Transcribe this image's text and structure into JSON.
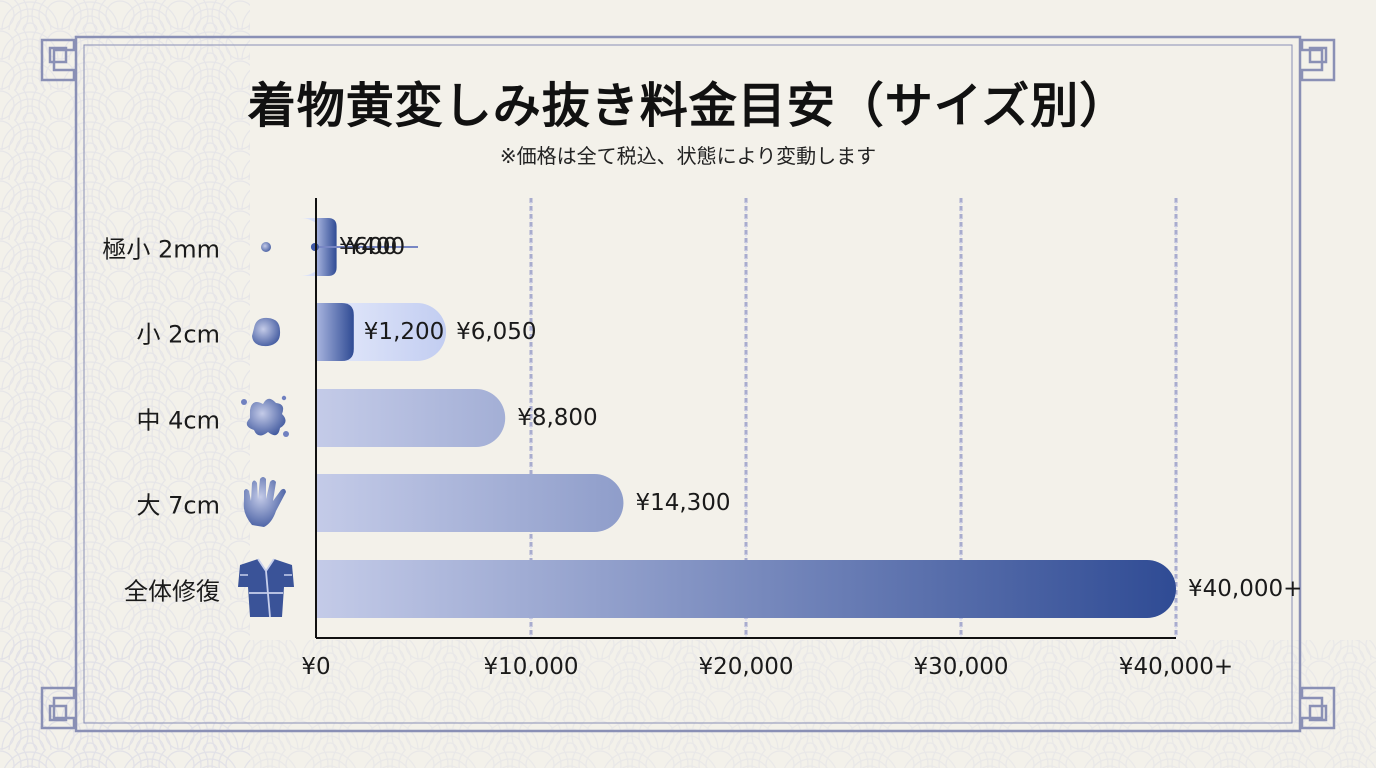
{
  "title": "着物黄変しみ抜き料金目安（サイズ別）",
  "subtitle": "※価格は全て税込、状態により変動します",
  "colors": {
    "bar_light": "#c4cbe8",
    "bar_dark": "#2f4b94",
    "border": "#8a90b5",
    "axis": "#111111",
    "grid": "#a8acce"
  },
  "chart_data": {
    "type": "bar",
    "orientation": "horizontal",
    "categories": [
      {
        "label": "極小 2mm",
        "icon": "tiny-dot-icon",
        "min": 400,
        "max": 600,
        "min_label": "¥400",
        "max_label": "¥600"
      },
      {
        "label": "小 2cm",
        "icon": "small-stain-icon",
        "min": 1200,
        "max": 6050,
        "min_label": "¥1,200",
        "max_label": "¥6,050"
      },
      {
        "label": "中 4cm",
        "icon": "splash-stain-icon",
        "value": 8800,
        "value_label": "¥8,800"
      },
      {
        "label": "大 7cm",
        "icon": "hand-icon",
        "value": 14300,
        "value_label": "¥14,300"
      },
      {
        "label": "全体修復",
        "icon": "kimono-icon",
        "value": 40000,
        "value_label": "¥40,000+"
      }
    ],
    "xlim": [
      0,
      40000
    ],
    "xticks": [
      {
        "value": 0,
        "label": "¥0"
      },
      {
        "value": 10000,
        "label": "¥10,000"
      },
      {
        "value": 20000,
        "label": "¥20,000"
      },
      {
        "value": 30000,
        "label": "¥30,000"
      },
      {
        "value": 40000,
        "label": "¥40,000+"
      }
    ],
    "grid": true,
    "xlabel": "",
    "ylabel": ""
  }
}
